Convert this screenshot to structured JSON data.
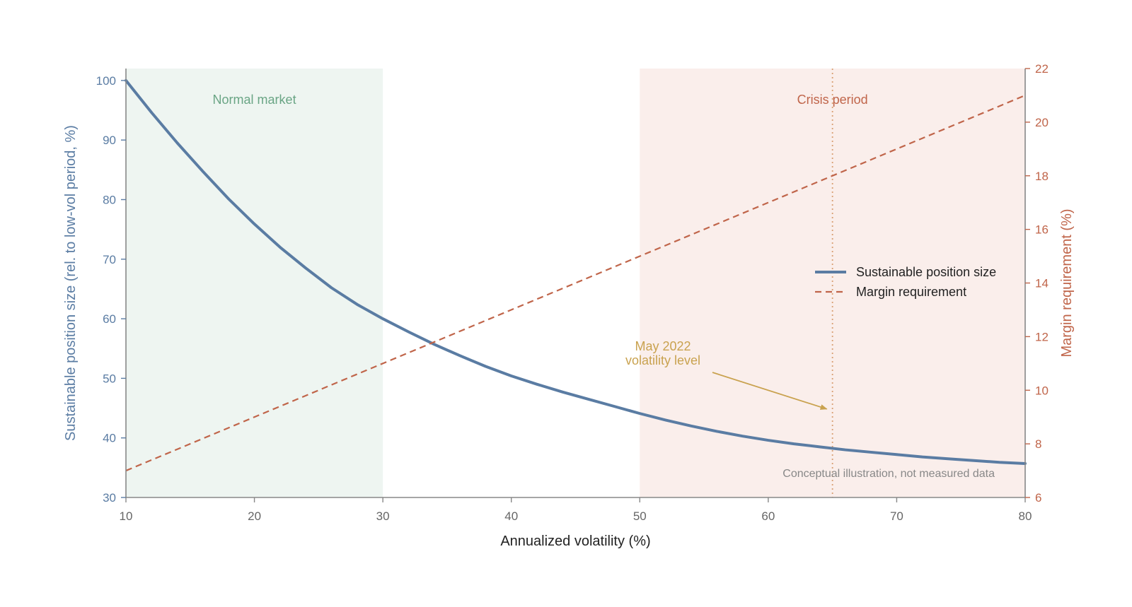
{
  "chart_data": {
    "type": "line",
    "x_axis": {
      "label": "Annualized volatility (%)",
      "range": [
        10,
        80
      ],
      "ticks": [
        10,
        20,
        30,
        40,
        50,
        60,
        70,
        80
      ]
    },
    "y_axis_left": {
      "label": "Sustainable position size (rel. to low-vol period, %)",
      "range": [
        30,
        102
      ],
      "ticks": [
        30,
        40,
        50,
        60,
        70,
        80,
        90,
        100
      ],
      "color": "#5a7ca3"
    },
    "y_axis_right": {
      "label": "Margin requirement (%)",
      "range": [
        6,
        22
      ],
      "ticks": [
        6,
        8,
        10,
        12,
        14,
        16,
        18,
        20,
        22
      ],
      "color": "#c0654a"
    },
    "series": [
      {
        "name": "Sustainable position size",
        "axis": "left",
        "style": "solid",
        "color": "#5a7ca3",
        "x": [
          10,
          12,
          14,
          16,
          18,
          20,
          22,
          24,
          26,
          28,
          30,
          32,
          34,
          36,
          38,
          40,
          42,
          44,
          46,
          48,
          50,
          52,
          54,
          56,
          58,
          60,
          62,
          64,
          66,
          68,
          70,
          72,
          74,
          76,
          78,
          80
        ],
        "y": [
          100,
          94.6,
          89.5,
          84.7,
          80.1,
          75.9,
          72.0,
          68.5,
          65.2,
          62.4,
          60.0,
          57.8,
          55.7,
          53.8,
          52.0,
          50.4,
          49.0,
          47.7,
          46.5,
          45.3,
          44.1,
          43.0,
          42.0,
          41.1,
          40.3,
          39.6,
          39.0,
          38.5,
          38.0,
          37.6,
          37.2,
          36.8,
          36.5,
          36.2,
          35.9,
          35.7
        ]
      },
      {
        "name": "Margin requirement",
        "axis": "right",
        "style": "dashed",
        "color": "#c0654a",
        "x": [
          10,
          80
        ],
        "y": [
          7,
          21
        ]
      }
    ],
    "regions": [
      {
        "label": "Normal market",
        "x_start": 10,
        "x_end": 30,
        "fill": "#eef5f1",
        "label_color": "#6aa585"
      },
      {
        "label": "Crisis period",
        "x_start": 50,
        "x_end": 80,
        "fill": "#faeeeb",
        "label_color": "#c0654a"
      }
    ],
    "reference_line": {
      "x": 65,
      "color": "#d9a074",
      "style": "dotted"
    },
    "annotation": {
      "lines": [
        "May 2022",
        "volatility level"
      ],
      "color": "#c9a24f",
      "arrow_to_x": 65,
      "arrow_to_y_right": 9.3
    },
    "note": "Conceptual illustration, not measured data",
    "legend": {
      "placement": "right-middle"
    },
    "grid": false
  },
  "colors": {
    "axis_line": "#888888",
    "tick_text_x": "#666666"
  }
}
